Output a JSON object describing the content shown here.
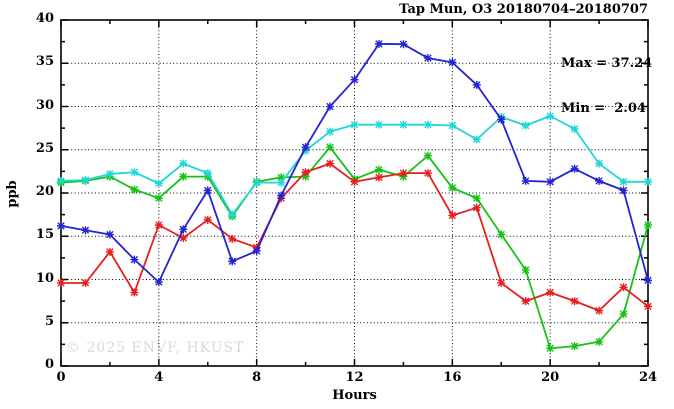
{
  "title": "Tap Mun, O3 20180704–20180707",
  "annotations": {
    "max_label": "Max = 37.24",
    "min_label": "Min =  2.04",
    "max_value": 37.24,
    "min_value": 2.04
  },
  "watermark": "© 2025 ENVF, HKUST",
  "chart_data": {
    "type": "line",
    "title": "Tap Mun, O3 20180704–20180707",
    "xlabel": "Hours",
    "ylabel": "ppb",
    "xlim": [
      0,
      24
    ],
    "ylim": [
      0,
      40
    ],
    "grid": true,
    "legend_position": "none",
    "x": [
      0,
      1,
      2,
      3,
      4,
      5,
      6,
      7,
      8,
      9,
      10,
      11,
      12,
      13,
      14,
      15,
      16,
      17,
      18,
      19,
      20,
      21,
      22,
      23,
      24
    ],
    "series": [
      {
        "name": "green-series",
        "color": "#16c216",
        "values": [
          21.2,
          21.4,
          21.9,
          20.4,
          19.4,
          21.9,
          21.9,
          17.3,
          21.3,
          21.8,
          21.9,
          25.3,
          21.6,
          22.7,
          21.9,
          24.3,
          20.6,
          19.4,
          15.2,
          11.1,
          2.04,
          2.3,
          2.8,
          6.0,
          16.3
        ]
      },
      {
        "name": "red-series",
        "color": "#e62020",
        "values": [
          9.6,
          9.6,
          13.2,
          8.5,
          16.3,
          14.8,
          16.9,
          14.7,
          13.7,
          19.4,
          22.4,
          23.4,
          21.3,
          21.8,
          22.3,
          22.3,
          17.4,
          18.3,
          9.6,
          7.5,
          8.5,
          7.5,
          6.4,
          9.1,
          6.9
        ]
      },
      {
        "name": "cyan-series",
        "color": "#22d6d6",
        "values": [
          21.4,
          21.5,
          22.2,
          22.4,
          21.1,
          23.4,
          22.3,
          17.5,
          21.2,
          21.2,
          24.9,
          27.1,
          27.9,
          27.9,
          27.9,
          27.9,
          27.8,
          26.2,
          28.8,
          27.8,
          28.9,
          27.4,
          23.4,
          21.3,
          21.3
        ]
      },
      {
        "name": "blue-series",
        "color": "#2424d0",
        "values": [
          16.2,
          15.7,
          15.2,
          12.3,
          9.7,
          15.8,
          20.3,
          12.1,
          13.3,
          19.7,
          25.3,
          30.0,
          33.1,
          37.24,
          37.2,
          35.6,
          35.1,
          32.5,
          28.5,
          21.4,
          21.3,
          22.8,
          21.4,
          20.3,
          9.9
        ]
      }
    ],
    "x_major_ticks": [
      0,
      4,
      8,
      12,
      16,
      20,
      24
    ],
    "x_minor_ticks": [
      2,
      6,
      10,
      14,
      18,
      22
    ],
    "y_major_ticks": [
      0,
      5,
      10,
      15,
      20,
      25,
      30,
      35,
      40
    ],
    "y_minor_ticks": [
      2.5,
      7.5,
      12.5,
      17.5,
      22.5,
      27.5,
      32.5,
      37.5
    ],
    "axis_color": "#000000",
    "grid_color": "#000000",
    "watermark_color": "#d9d9d9"
  }
}
